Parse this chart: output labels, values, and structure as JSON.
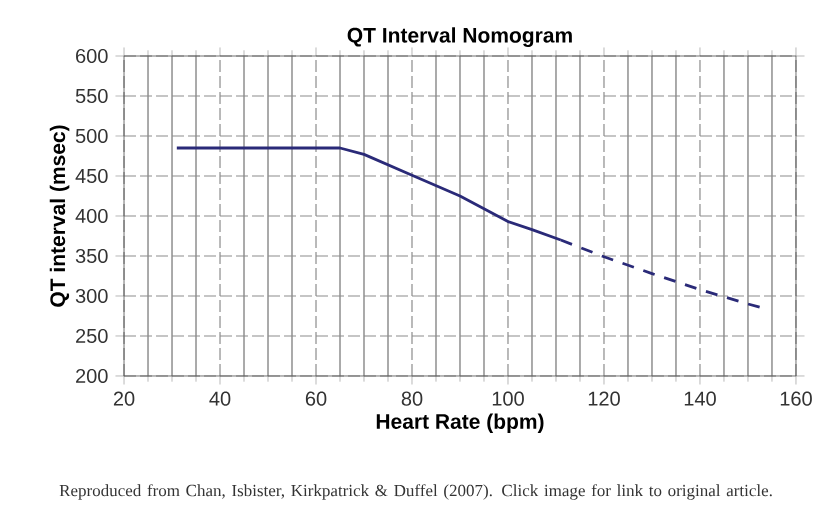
{
  "chart_data": {
    "type": "line",
    "title": "QT Interval Nomogram",
    "xlabel": "Heart Rate (bpm)",
    "ylabel": "QT interval (msec)",
    "series": [
      {
        "color": "#2a2a78",
        "line_style": "solid",
        "x": [
          31,
          65,
          70,
          80,
          90,
          100,
          105,
          111
        ],
        "values": [
          485,
          485,
          477,
          451,
          425,
          393,
          383,
          370
        ]
      },
      {
        "color": "#2a2a78",
        "line_style": "dashed",
        "x": [
          111,
          120,
          130,
          140,
          150,
          153
        ],
        "values": [
          370,
          349,
          328,
          308,
          290,
          285
        ]
      }
    ],
    "xlim": [
      20,
      160
    ],
    "xticks": [
      20,
      40,
      60,
      80,
      100,
      120,
      140,
      160
    ],
    "ylim": [
      200,
      600
    ],
    "yticks": [
      200,
      250,
      300,
      350,
      400,
      450,
      500,
      550,
      600
    ],
    "grid": true,
    "marker": "none",
    "annotations": [
      "Reproduced from Chan, Isbister, Kirkpatrick & Duffel (2007). Click image for link to original article."
    ]
  }
}
